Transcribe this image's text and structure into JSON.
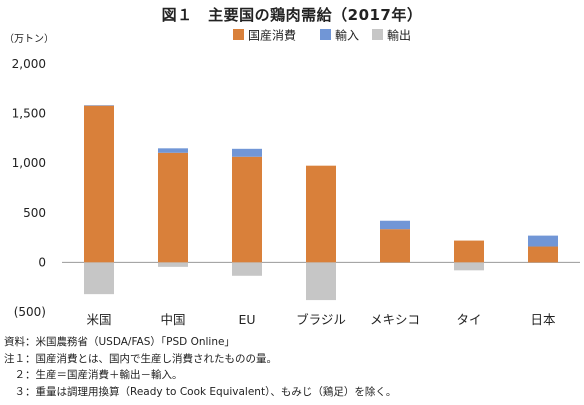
{
  "chart_data": {
    "type": "bar",
    "stacked": true,
    "title": "図１　主要国の鶏肉需給（2017年）",
    "unit": "（万トン）",
    "categories": [
      "米国",
      "中国",
      "EU",
      "ブラジル",
      "メキシコ",
      "タイ",
      "日本"
    ],
    "series": [
      {
        "name": "国産消費",
        "color": "#d9803a",
        "values": [
          1580,
          1105,
          1065,
          975,
          335,
          220,
          160
        ]
      },
      {
        "name": "輸入",
        "color": "#7196d6",
        "values": [
          5,
          45,
          80,
          0,
          85,
          0,
          110
        ]
      },
      {
        "name": "輸出",
        "color": "#c6c6c6",
        "values": [
          -320,
          -45,
          -135,
          -380,
          0,
          -80,
          0
        ]
      }
    ],
    "ylim": [
      -500,
      2000
    ],
    "yticks": [
      2000,
      1500,
      1000,
      500,
      0,
      -500
    ],
    "ytick_labels": [
      "2,000",
      "1,500",
      "1,000",
      "500",
      "0",
      "(500)"
    ],
    "legend_position": "top-center"
  },
  "notes": [
    "資料：米国農務省（USDA/FAS）「PSD Online」",
    "注１：国産消費とは、国内で生産し消費されたものの量。",
    "　２：生産＝国産消費＋輸出－輸入。",
    "　３：重量は調理用換算（Ready to Cook Equivalent）、もみじ（鶏足）を除く。"
  ]
}
